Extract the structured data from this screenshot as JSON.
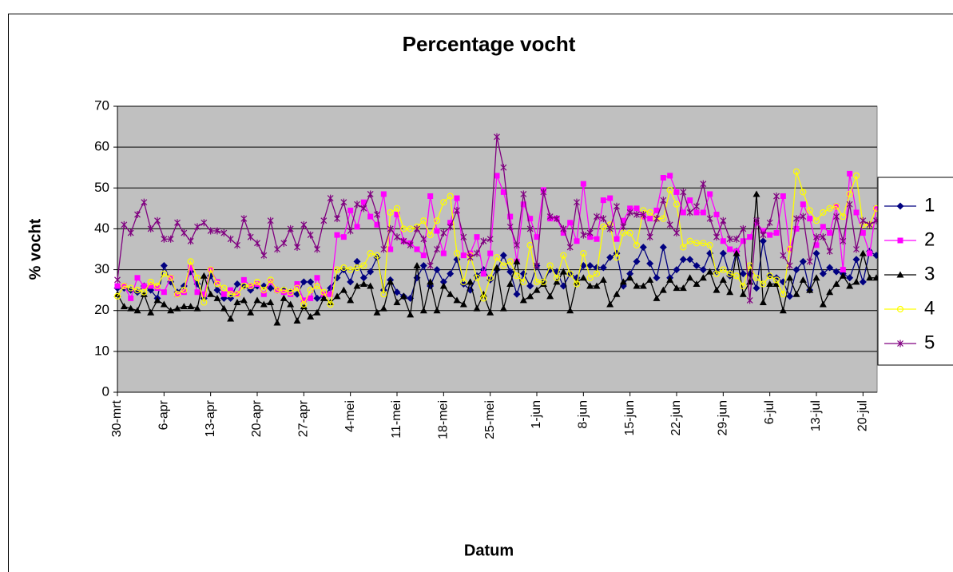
{
  "chart_data": {
    "type": "line",
    "title": "Percentage vocht",
    "x_label": "Datum",
    "y_label": "% vocht",
    "categories": [
      "30-mrt",
      null,
      null,
      null,
      null,
      null,
      null,
      "6-apr",
      null,
      null,
      null,
      null,
      null,
      null,
      "13-apr",
      null,
      null,
      null,
      null,
      null,
      null,
      "20-apr",
      null,
      null,
      null,
      null,
      null,
      null,
      "27-apr",
      null,
      null,
      null,
      null,
      null,
      null,
      "4-mei",
      null,
      null,
      null,
      null,
      null,
      null,
      "11-mei",
      null,
      null,
      null,
      null,
      null,
      null,
      "18-mei",
      null,
      null,
      null,
      null,
      null,
      null,
      "25-mei",
      null,
      null,
      null,
      null,
      null,
      null,
      "1-jun",
      null,
      null,
      null,
      null,
      null,
      null,
      "8-jun",
      null,
      null,
      null,
      null,
      null,
      null,
      "15-jun",
      null,
      null,
      null,
      null,
      null,
      null,
      "22-jun",
      null,
      null,
      null,
      null,
      null,
      null,
      "29-jun",
      null,
      null,
      null,
      null,
      null,
      null,
      "6-jul",
      null,
      null,
      null,
      null,
      null,
      null,
      "13-jul",
      null,
      null,
      null,
      null,
      null,
      null,
      "20-jul",
      null,
      null
    ],
    "ylim": [
      0,
      70
    ],
    "yticks": [
      0,
      10,
      20,
      30,
      40,
      50,
      60,
      70
    ],
    "grid": true,
    "legend": "right",
    "series": [
      {
        "name": "1",
        "color": "#000080",
        "marker": "diamond",
        "values": [
          25.5,
          25.5,
          25,
          24.5,
          26,
          25,
          23,
          31,
          27,
          24.5,
          26,
          29.5,
          26.5,
          23,
          28.5,
          25,
          23,
          23,
          26.5,
          26,
          25,
          26,
          26,
          25.5,
          25,
          25,
          24.5,
          24,
          27,
          27,
          23,
          23.5,
          25.5,
          28,
          30,
          27,
          32,
          28,
          29.5,
          33,
          25,
          27.5,
          24.5,
          23.5,
          23,
          28,
          31,
          26,
          30,
          27,
          29,
          32.5,
          26.5,
          25,
          28.5,
          30,
          27.5,
          30,
          33.5,
          29.5,
          24,
          29,
          26,
          31,
          27,
          30,
          29.5,
          26,
          29,
          28,
          31,
          31,
          30.5,
          30.5,
          33,
          34,
          26,
          29,
          32,
          35.5,
          31.5,
          28,
          35.5,
          28,
          30,
          32.5,
          32.5,
          31,
          30,
          34,
          29.5,
          34,
          28.5,
          34.5,
          29,
          29,
          25.5,
          37,
          28.5,
          28,
          27,
          23.5,
          30,
          32,
          25,
          34,
          29,
          30.5,
          29.5,
          29,
          28,
          32.5,
          27,
          34.5,
          33.5
        ]
      },
      {
        "name": "2",
        "color": "#ff00ff",
        "marker": "square",
        "values": [
          26,
          26,
          23,
          28,
          26,
          26,
          25.5,
          24.5,
          28,
          24,
          24.5,
          30.5,
          24.5,
          24,
          30,
          27,
          24,
          25,
          24,
          27.5,
          26,
          26.5,
          24,
          27,
          25,
          24.5,
          24,
          26.5,
          22.5,
          23,
          28,
          24,
          24,
          38.5,
          38,
          44.5,
          40.5,
          46.5,
          43,
          41,
          48.5,
          35,
          43.5,
          37,
          36.5,
          35,
          33.5,
          48,
          39.5,
          34,
          41.5,
          47.5,
          33.5,
          34,
          38,
          29,
          34,
          53,
          49,
          43,
          32,
          46,
          42.5,
          38,
          49.5,
          42.5,
          42.5,
          39,
          41.5,
          37,
          51,
          38,
          37.5,
          47,
          47.5,
          37.5,
          42,
          45,
          45,
          43,
          42.5,
          44.5,
          52.5,
          53,
          49,
          44,
          47,
          44,
          44,
          48.5,
          43.5,
          37,
          35,
          34.5,
          37,
          38,
          41.5,
          39.5,
          38.5,
          39,
          48,
          35,
          40,
          46,
          42.5,
          36,
          40.5,
          39,
          45.5,
          30,
          53.5,
          44,
          39,
          34,
          45
        ]
      },
      {
        "name": "3",
        "color": "#000000",
        "marker": "triangle",
        "values": [
          24,
          21,
          20.5,
          20,
          24,
          19.5,
          22.5,
          21.5,
          20,
          20.5,
          21,
          21,
          20.5,
          28.5,
          24,
          23,
          20.5,
          18,
          22,
          22.5,
          19.5,
          22.5,
          21.5,
          22,
          17,
          23,
          21.5,
          17.5,
          21,
          18.5,
          19.5,
          23,
          22,
          23.5,
          25,
          22.5,
          26,
          26.5,
          26,
          19.5,
          20.5,
          27,
          22,
          23.5,
          19,
          31,
          20,
          27,
          20,
          26,
          24,
          22.5,
          21.5,
          27,
          20.5,
          24,
          19.5,
          30.5,
          20.5,
          26.5,
          32,
          22.5,
          23.5,
          25,
          26.5,
          23.5,
          27,
          29.5,
          20,
          27,
          28,
          26,
          26,
          27.5,
          21.5,
          24,
          27,
          28,
          26,
          26,
          27.5,
          23,
          25,
          27.5,
          25.5,
          25.5,
          28,
          26.5,
          28,
          29.5,
          25,
          27.5,
          24.5,
          34,
          24,
          27,
          48.5,
          22,
          26.5,
          26.5,
          20,
          28,
          24,
          27.5,
          25,
          28,
          21.5,
          24.5,
          26.5,
          28.5,
          26,
          27,
          34,
          28,
          28
        ]
      },
      {
        "name": "4",
        "color": "#ffff00",
        "marker": "circle",
        "values": [
          23.5,
          26,
          25.5,
          25,
          24.5,
          27,
          26,
          29,
          28,
          24,
          25,
          32,
          28,
          22,
          30,
          26.5,
          25.5,
          24,
          24,
          26,
          26,
          27,
          25,
          27.5,
          25,
          25,
          24.5,
          25.5,
          21.5,
          25,
          26,
          24.5,
          21.5,
          30,
          30.5,
          30,
          30.5,
          31,
          34,
          33.5,
          24,
          44,
          45,
          40,
          40,
          40.5,
          42,
          38.5,
          42,
          46.5,
          48,
          34,
          27,
          33.5,
          28,
          23,
          28,
          33,
          31,
          32,
          28.5,
          27,
          36,
          27,
          27,
          31,
          28,
          33.5,
          29,
          26.5,
          34,
          28,
          29,
          40.5,
          41,
          33,
          39,
          39,
          36,
          44.5,
          44,
          42.5,
          42.5,
          49.5,
          46,
          35.5,
          37,
          36.5,
          36.5,
          36,
          29,
          30,
          29,
          28.5,
          26,
          31,
          28,
          26.5,
          28.5,
          27.5,
          24,
          35,
          54,
          49,
          44.5,
          42,
          44,
          45,
          45.5,
          43,
          48.5,
          53,
          41,
          41,
          45
        ]
      },
      {
        "name": "5",
        "color": "#800080",
        "marker": "star",
        "values": [
          27.5,
          41,
          39,
          43.5,
          46.5,
          40,
          42,
          37.5,
          37.5,
          41.5,
          39,
          37,
          40.5,
          41.5,
          39.5,
          39.5,
          39,
          37.5,
          36,
          42.5,
          38,
          36.5,
          33.5,
          42,
          35,
          36.5,
          40,
          35.5,
          41,
          38.5,
          35,
          42,
          47.5,
          42.5,
          46.5,
          39.5,
          46,
          45,
          48.5,
          43.5,
          35,
          40,
          38,
          37,
          36,
          40,
          37.5,
          31,
          35,
          39,
          40.5,
          44.5,
          38,
          33,
          34,
          37,
          37.5,
          62.5,
          55,
          40.5,
          36,
          48.5,
          40,
          31,
          49,
          43,
          42.5,
          40,
          35.5,
          46.5,
          38.5,
          39,
          43,
          42.5,
          40,
          45.5,
          40.5,
          44,
          43.5,
          43.5,
          38,
          42.5,
          47,
          41,
          39,
          49,
          44,
          45.5,
          51,
          42.5,
          38,
          42,
          37.5,
          37.5,
          40,
          22.5,
          42,
          38.5,
          41.5,
          48,
          33.5,
          31,
          42.5,
          43,
          32,
          38,
          38,
          34.5,
          43,
          37,
          46,
          35,
          42,
          41,
          42
        ]
      }
    ]
  }
}
